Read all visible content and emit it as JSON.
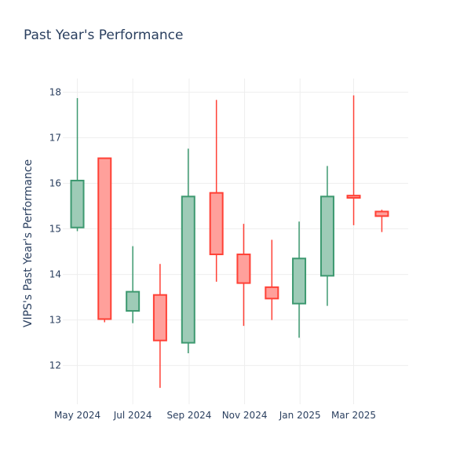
{
  "chart_data": {
    "type": "candlestick",
    "title": "Past Year's Performance",
    "ylabel": "VIPS's Past Year's Performance",
    "xlabel": "",
    "ylim": [
      11.15,
      18.3
    ],
    "yticks": [
      12,
      13,
      14,
      15,
      16,
      17,
      18
    ],
    "xticks": [
      {
        "label": "May 2024",
        "date": "2024-05-01"
      },
      {
        "label": "Jul 2024",
        "date": "2024-07-01"
      },
      {
        "label": "Sep 2024",
        "date": "2024-09-01"
      },
      {
        "label": "Nov 2024",
        "date": "2024-11-01"
      },
      {
        "label": "Jan 2025",
        "date": "2025-01-01"
      },
      {
        "label": "Mar 2025",
        "date": "2025-03-01"
      }
    ],
    "xlim": [
      "2024-04-15",
      "2025-04-30"
    ],
    "grid": true,
    "colors": {
      "increasing": "#3d9970",
      "increasing_fill": "#9ecbb7",
      "decreasing": "#ff4136",
      "decreasing_fill": "#ffa09b"
    },
    "candles": [
      {
        "date": "2024-05-01",
        "open": 15.03,
        "high": 17.87,
        "low": 14.95,
        "close": 16.06
      },
      {
        "date": "2024-05-31",
        "open": 16.55,
        "high": 16.55,
        "low": 12.95,
        "close": 13.02
      },
      {
        "date": "2024-07-01",
        "open": 13.2,
        "high": 14.62,
        "low": 12.93,
        "close": 13.62
      },
      {
        "date": "2024-07-31",
        "open": 13.55,
        "high": 14.23,
        "low": 11.51,
        "close": 12.55
      },
      {
        "date": "2024-08-31",
        "open": 12.5,
        "high": 16.76,
        "low": 12.27,
        "close": 15.71
      },
      {
        "date": "2024-10-01",
        "open": 15.79,
        "high": 17.83,
        "low": 13.84,
        "close": 14.44
      },
      {
        "date": "2024-10-31",
        "open": 14.44,
        "high": 15.11,
        "low": 12.87,
        "close": 13.81
      },
      {
        "date": "2024-12-01",
        "open": 13.72,
        "high": 14.76,
        "low": 13.0,
        "close": 13.47
      },
      {
        "date": "2024-12-31",
        "open": 13.36,
        "high": 15.16,
        "low": 12.61,
        "close": 14.35
      },
      {
        "date": "2025-01-31",
        "open": 13.97,
        "high": 16.38,
        "low": 13.31,
        "close": 15.71
      },
      {
        "date": "2025-03-01",
        "open": 15.73,
        "high": 17.93,
        "low": 15.08,
        "close": 15.68
      },
      {
        "date": "2025-04-01",
        "open": 15.38,
        "high": 15.42,
        "low": 14.93,
        "close": 15.28
      }
    ]
  }
}
